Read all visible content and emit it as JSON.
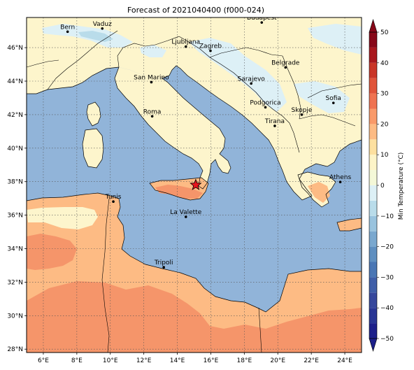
{
  "title": "Forecast of 2021040400 (f000-024)",
  "map": {
    "lon_range": [
      5,
      25
    ],
    "lat_range": [
      27.8,
      47.8
    ],
    "lon_ticks": [
      6,
      8,
      10,
      12,
      14,
      16,
      18,
      20,
      22,
      24
    ],
    "lat_ticks": [
      28,
      30,
      32,
      34,
      36,
      38,
      40,
      42,
      44,
      46
    ],
    "lon_tick_labels": [
      "6°E",
      "8°E",
      "10°E",
      "12°E",
      "14°E",
      "16°E",
      "18°E",
      "20°E",
      "22°E",
      "24°E"
    ],
    "lat_tick_labels": [
      "28°N",
      "30°N",
      "32°N",
      "34°N",
      "36°N",
      "38°N",
      "40°N",
      "42°N",
      "44°N",
      "46°N"
    ],
    "gridlines": true,
    "marker": {
      "name": "star",
      "lon": 15.1,
      "lat": 37.8,
      "color": "#e8141e"
    }
  },
  "cities": [
    {
      "name": "Bern",
      "lon": 7.45,
      "lat": 46.95
    },
    {
      "name": "Vaduz",
      "lon": 9.52,
      "lat": 47.14
    },
    {
      "name": "Budapest",
      "lon": 19.04,
      "lat": 47.5
    },
    {
      "name": "Ljubljana",
      "lon": 14.51,
      "lat": 46.06
    },
    {
      "name": "Zagreb",
      "lon": 15.98,
      "lat": 45.81
    },
    {
      "name": "Belgrade",
      "lon": 20.46,
      "lat": 44.82
    },
    {
      "name": "San Marino",
      "lon": 12.45,
      "lat": 43.94
    },
    {
      "name": "Sarajevo",
      "lon": 18.41,
      "lat": 43.86
    },
    {
      "name": "Sofia",
      "lon": 23.32,
      "lat": 42.7
    },
    {
      "name": "Podgorica",
      "lon": 19.26,
      "lat": 42.44
    },
    {
      "name": "Skopje",
      "lon": 21.43,
      "lat": 42.0
    },
    {
      "name": "Roma",
      "lon": 12.5,
      "lat": 41.9
    },
    {
      "name": "Tirana",
      "lon": 19.82,
      "lat": 41.33
    },
    {
      "name": "Athens",
      "lon": 23.73,
      "lat": 37.98
    },
    {
      "name": "Tunis",
      "lon": 10.18,
      "lat": 36.81
    },
    {
      "name": "La Valette",
      "lon": 14.51,
      "lat": 35.9
    },
    {
      "name": "Tripoli",
      "lon": 13.19,
      "lat": 32.89
    }
  ],
  "colorbar": {
    "label": "Min Temperature (°C)",
    "ticks": [
      -50,
      -40,
      -30,
      -20,
      -10,
      0,
      10,
      20,
      30,
      40,
      50
    ],
    "tick_labels": [
      "−50",
      "−40",
      "−30",
      "−20",
      "−10",
      "0",
      "10",
      "20",
      "30",
      "40",
      "50"
    ],
    "levels": [
      {
        "from": -50,
        "to": -45,
        "color": "#1c1f8a"
      },
      {
        "from": -45,
        "to": -40,
        "color": "#283594"
      },
      {
        "from": -40,
        "to": -35,
        "color": "#36479c"
      },
      {
        "from": -35,
        "to": -30,
        "color": "#3f5ea8"
      },
      {
        "from": -30,
        "to": -25,
        "color": "#4a76b4"
      },
      {
        "from": -25,
        "to": -20,
        "color": "#5f8fc0"
      },
      {
        "from": -20,
        "to": -15,
        "color": "#7aa8cf"
      },
      {
        "from": -15,
        "to": -10,
        "color": "#99c3de"
      },
      {
        "from": -10,
        "to": -5,
        "color": "#b9dcea"
      },
      {
        "from": -5,
        "to": 0,
        "color": "#ddf0f6"
      },
      {
        "from": 0,
        "to": 5,
        "color": "#f4f8d8"
      },
      {
        "from": 5,
        "to": 10,
        "color": "#fdf4c8"
      },
      {
        "from": 10,
        "to": 15,
        "color": "#fde0a0"
      },
      {
        "from": 15,
        "to": 20,
        "color": "#fdbb84"
      },
      {
        "from": 20,
        "to": 25,
        "color": "#f99a6a"
      },
      {
        "from": 25,
        "to": 30,
        "color": "#ef7351"
      },
      {
        "from": 30,
        "to": 35,
        "color": "#e0543a"
      },
      {
        "from": 35,
        "to": 40,
        "color": "#c93527"
      },
      {
        "from": 40,
        "to": 45,
        "color": "#a9171d"
      },
      {
        "from": 45,
        "to": 50,
        "color": "#870718"
      }
    ],
    "extend": "both"
  },
  "colors": {
    "sea": "#91b4d9",
    "land_cold": "#fdf5cc",
    "land_mild": "#fdbb84",
    "land_warm": "#f5956a",
    "land_hot": "#ef7351",
    "snow_cold": "#ddf0f6",
    "snow_colder": "#b9dcea",
    "grid": "#555555"
  }
}
